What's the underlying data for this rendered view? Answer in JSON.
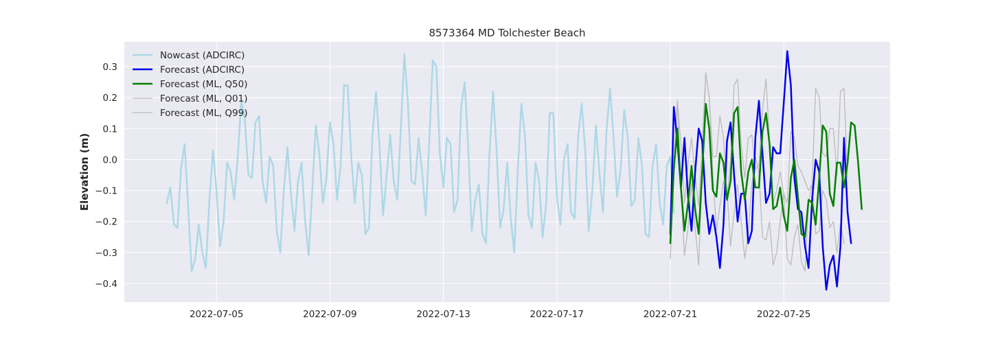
{
  "chart_data": {
    "type": "line",
    "title": "8573364 MD Tolchester Beach",
    "ylabel": "Elevation (m)",
    "xlabel": "",
    "xlim": [
      "2022-07-01T18:00",
      "2022-07-28T18:00"
    ],
    "ylim": [
      -0.46,
      0.38
    ],
    "x_ticks": [
      "2022-07-05",
      "2022-07-09",
      "2022-07-13",
      "2022-07-17",
      "2022-07-21",
      "2022-07-25"
    ],
    "y_ticks": [
      -0.4,
      -0.3,
      -0.2,
      -0.1,
      0.0,
      0.1,
      0.2,
      0.3
    ],
    "y_tick_labels": [
      "−0.4",
      "−0.3",
      "−0.2",
      "−0.1",
      "0.0",
      "0.1",
      "0.2",
      "0.3"
    ],
    "grid": true,
    "legend_position": "top-left",
    "series": [
      {
        "name": "Nowcast (ADCIRC)",
        "color": "#add8e6",
        "width": 2.5,
        "x_start": "2022-07-03T06:00",
        "step_hours": 3,
        "values": [
          -0.14,
          -0.09,
          -0.21,
          -0.22,
          -0.03,
          0.05,
          -0.15,
          -0.36,
          -0.32,
          -0.21,
          -0.3,
          -0.35,
          -0.13,
          0.03,
          -0.1,
          -0.28,
          -0.2,
          -0.01,
          -0.04,
          -0.13,
          0.01,
          0.19,
          0.13,
          -0.05,
          -0.06,
          0.12,
          0.14,
          -0.07,
          -0.14,
          0.01,
          -0.02,
          -0.23,
          -0.3,
          -0.1,
          0.04,
          -0.11,
          -0.23,
          -0.07,
          -0.01,
          -0.2,
          -0.31,
          -0.1,
          0.11,
          0.02,
          -0.14,
          -0.06,
          0.12,
          0.05,
          -0.13,
          -0.02,
          0.24,
          0.24,
          0.01,
          -0.14,
          -0.01,
          -0.05,
          -0.24,
          -0.22,
          0.08,
          0.22,
          0.04,
          -0.18,
          -0.05,
          0.08,
          -0.07,
          -0.13,
          0.1,
          0.34,
          0.18,
          -0.07,
          -0.08,
          0.07,
          -0.04,
          -0.18,
          0.05,
          0.32,
          0.3,
          0.02,
          -0.09,
          0.07,
          0.05,
          -0.17,
          -0.13,
          0.17,
          0.25,
          0.04,
          -0.23,
          -0.13,
          -0.08,
          -0.24,
          -0.27,
          0.02,
          0.22,
          0.03,
          -0.22,
          -0.16,
          -0.01,
          -0.19,
          -0.3,
          -0.03,
          0.18,
          0.08,
          -0.18,
          -0.22,
          -0.01,
          -0.07,
          -0.25,
          -0.14,
          0.15,
          0.15,
          -0.12,
          -0.21,
          0.0,
          0.05,
          -0.17,
          -0.19,
          0.07,
          0.18,
          0.03,
          -0.23,
          -0.1,
          0.11,
          -0.04,
          -0.17,
          0.09,
          0.23,
          0.07,
          -0.12,
          -0.03,
          0.16,
          0.07,
          -0.15,
          -0.13,
          0.07,
          -0.02,
          -0.24,
          -0.25,
          -0.02,
          0.05,
          -0.14,
          -0.21,
          -0.02,
          0.01,
          -0.17
        ]
      },
      {
        "name": "Forecast (ML, Q01)",
        "color": "#bbbbbb",
        "width": 1.3,
        "x_start": "2022-07-21T00:00",
        "step_hours": 3,
        "values": [
          -0.32,
          -0.05,
          0.19,
          -0.1,
          -0.31,
          -0.22,
          -0.08,
          -0.22,
          -0.34,
          -0.05,
          0.28,
          0.2,
          -0.05,
          -0.23,
          -0.15,
          -0.07,
          -0.1,
          -0.28,
          -0.17,
          -0.08,
          -0.2,
          -0.32,
          -0.24,
          -0.08,
          0.01,
          -0.04,
          -0.25,
          -0.26,
          -0.2,
          -0.34,
          -0.3,
          -0.2,
          -0.11,
          -0.32,
          -0.34,
          -0.25,
          -0.21,
          -0.33,
          -0.36,
          -0.14,
          -0.08,
          -0.24,
          -0.23,
          -0.1,
          -0.13,
          -0.22,
          -0.2,
          -0.3,
          -0.21,
          -0.27
        ]
      },
      {
        "name": "Forecast (ML, Q99)",
        "color": "#bbbbbb",
        "width": 1.3,
        "x_start": "2022-07-21T00:00",
        "step_hours": 3,
        "values": [
          -0.25,
          0.02,
          0.19,
          0.05,
          -0.14,
          -0.01,
          0.07,
          -0.05,
          -0.15,
          0.05,
          0.28,
          0.2,
          0.01,
          0.01,
          0.14,
          0.07,
          -0.12,
          -0.01,
          0.24,
          0.26,
          0.05,
          -0.06,
          0.07,
          0.08,
          -0.03,
          -0.02,
          0.16,
          0.26,
          0.06,
          -0.14,
          -0.1,
          -0.04,
          -0.11,
          -0.14,
          0.09,
          0.07,
          -0.02,
          -0.04,
          -0.07,
          -0.1,
          -0.08,
          0.23,
          0.2,
          0.02,
          0.01,
          0.1,
          0.1,
          -0.05,
          0.22,
          0.23,
          -0.06
        ]
      },
      {
        "name": "Forecast (ADCIRC)",
        "color": "#0000ee",
        "width": 2.5,
        "x_start": "2022-07-21T00:00",
        "step_hours": 3,
        "values": [
          -0.24,
          0.17,
          0.06,
          -0.09,
          0.07,
          -0.12,
          -0.23,
          -0.04,
          0.1,
          0.06,
          -0.14,
          -0.24,
          -0.18,
          -0.25,
          -0.35,
          -0.21,
          0.06,
          0.12,
          -0.05,
          -0.2,
          -0.11,
          -0.11,
          -0.27,
          -0.23,
          0.07,
          0.19,
          0.02,
          -0.14,
          -0.11,
          0.04,
          0.02,
          0.02,
          0.18,
          0.35,
          0.24,
          -0.06,
          -0.16,
          -0.17,
          -0.28,
          -0.35,
          -0.13,
          0.0,
          -0.04,
          -0.28,
          -0.42,
          -0.34,
          -0.31,
          -0.41,
          -0.28,
          0.07,
          -0.17,
          -0.27
        ]
      },
      {
        "name": "Forecast (ML, Q50)",
        "color": "#008000",
        "width": 2.5,
        "x_start": "2022-07-21T00:00",
        "step_hours": 3,
        "values": [
          -0.27,
          -0.03,
          0.1,
          -0.09,
          -0.23,
          -0.14,
          -0.02,
          -0.16,
          -0.24,
          -0.04,
          0.18,
          0.1,
          -0.1,
          -0.12,
          0.02,
          -0.01,
          -0.13,
          -0.07,
          0.15,
          0.17,
          -0.04,
          -0.13,
          -0.04,
          0.0,
          -0.09,
          -0.09,
          0.09,
          0.15,
          0.05,
          -0.16,
          -0.15,
          -0.09,
          -0.18,
          -0.23,
          -0.06,
          0.0,
          -0.12,
          -0.24,
          -0.25,
          -0.13,
          -0.14,
          -0.21,
          -0.06,
          0.11,
          0.09,
          -0.11,
          -0.15,
          -0.01,
          -0.01,
          -0.09,
          -0.01,
          0.12,
          0.11,
          -0.01,
          -0.16
        ]
      }
    ],
    "legend": [
      {
        "label": "Nowcast (ADCIRC)",
        "color": "#add8e6",
        "width": 2.5
      },
      {
        "label": "Forecast (ADCIRC)",
        "color": "#0000ee",
        "width": 2.5
      },
      {
        "label": "Forecast (ML, Q50)",
        "color": "#008000",
        "width": 2.5
      },
      {
        "label": "Forecast (ML, Q01)",
        "color": "#bbbbbb",
        "width": 1.3
      },
      {
        "label": "Forecast (ML, Q99)",
        "color": "#bbbbbb",
        "width": 1.3
      }
    ],
    "colors": {
      "plot_background": "#eaeaf2",
      "grid": "#ffffff"
    }
  }
}
